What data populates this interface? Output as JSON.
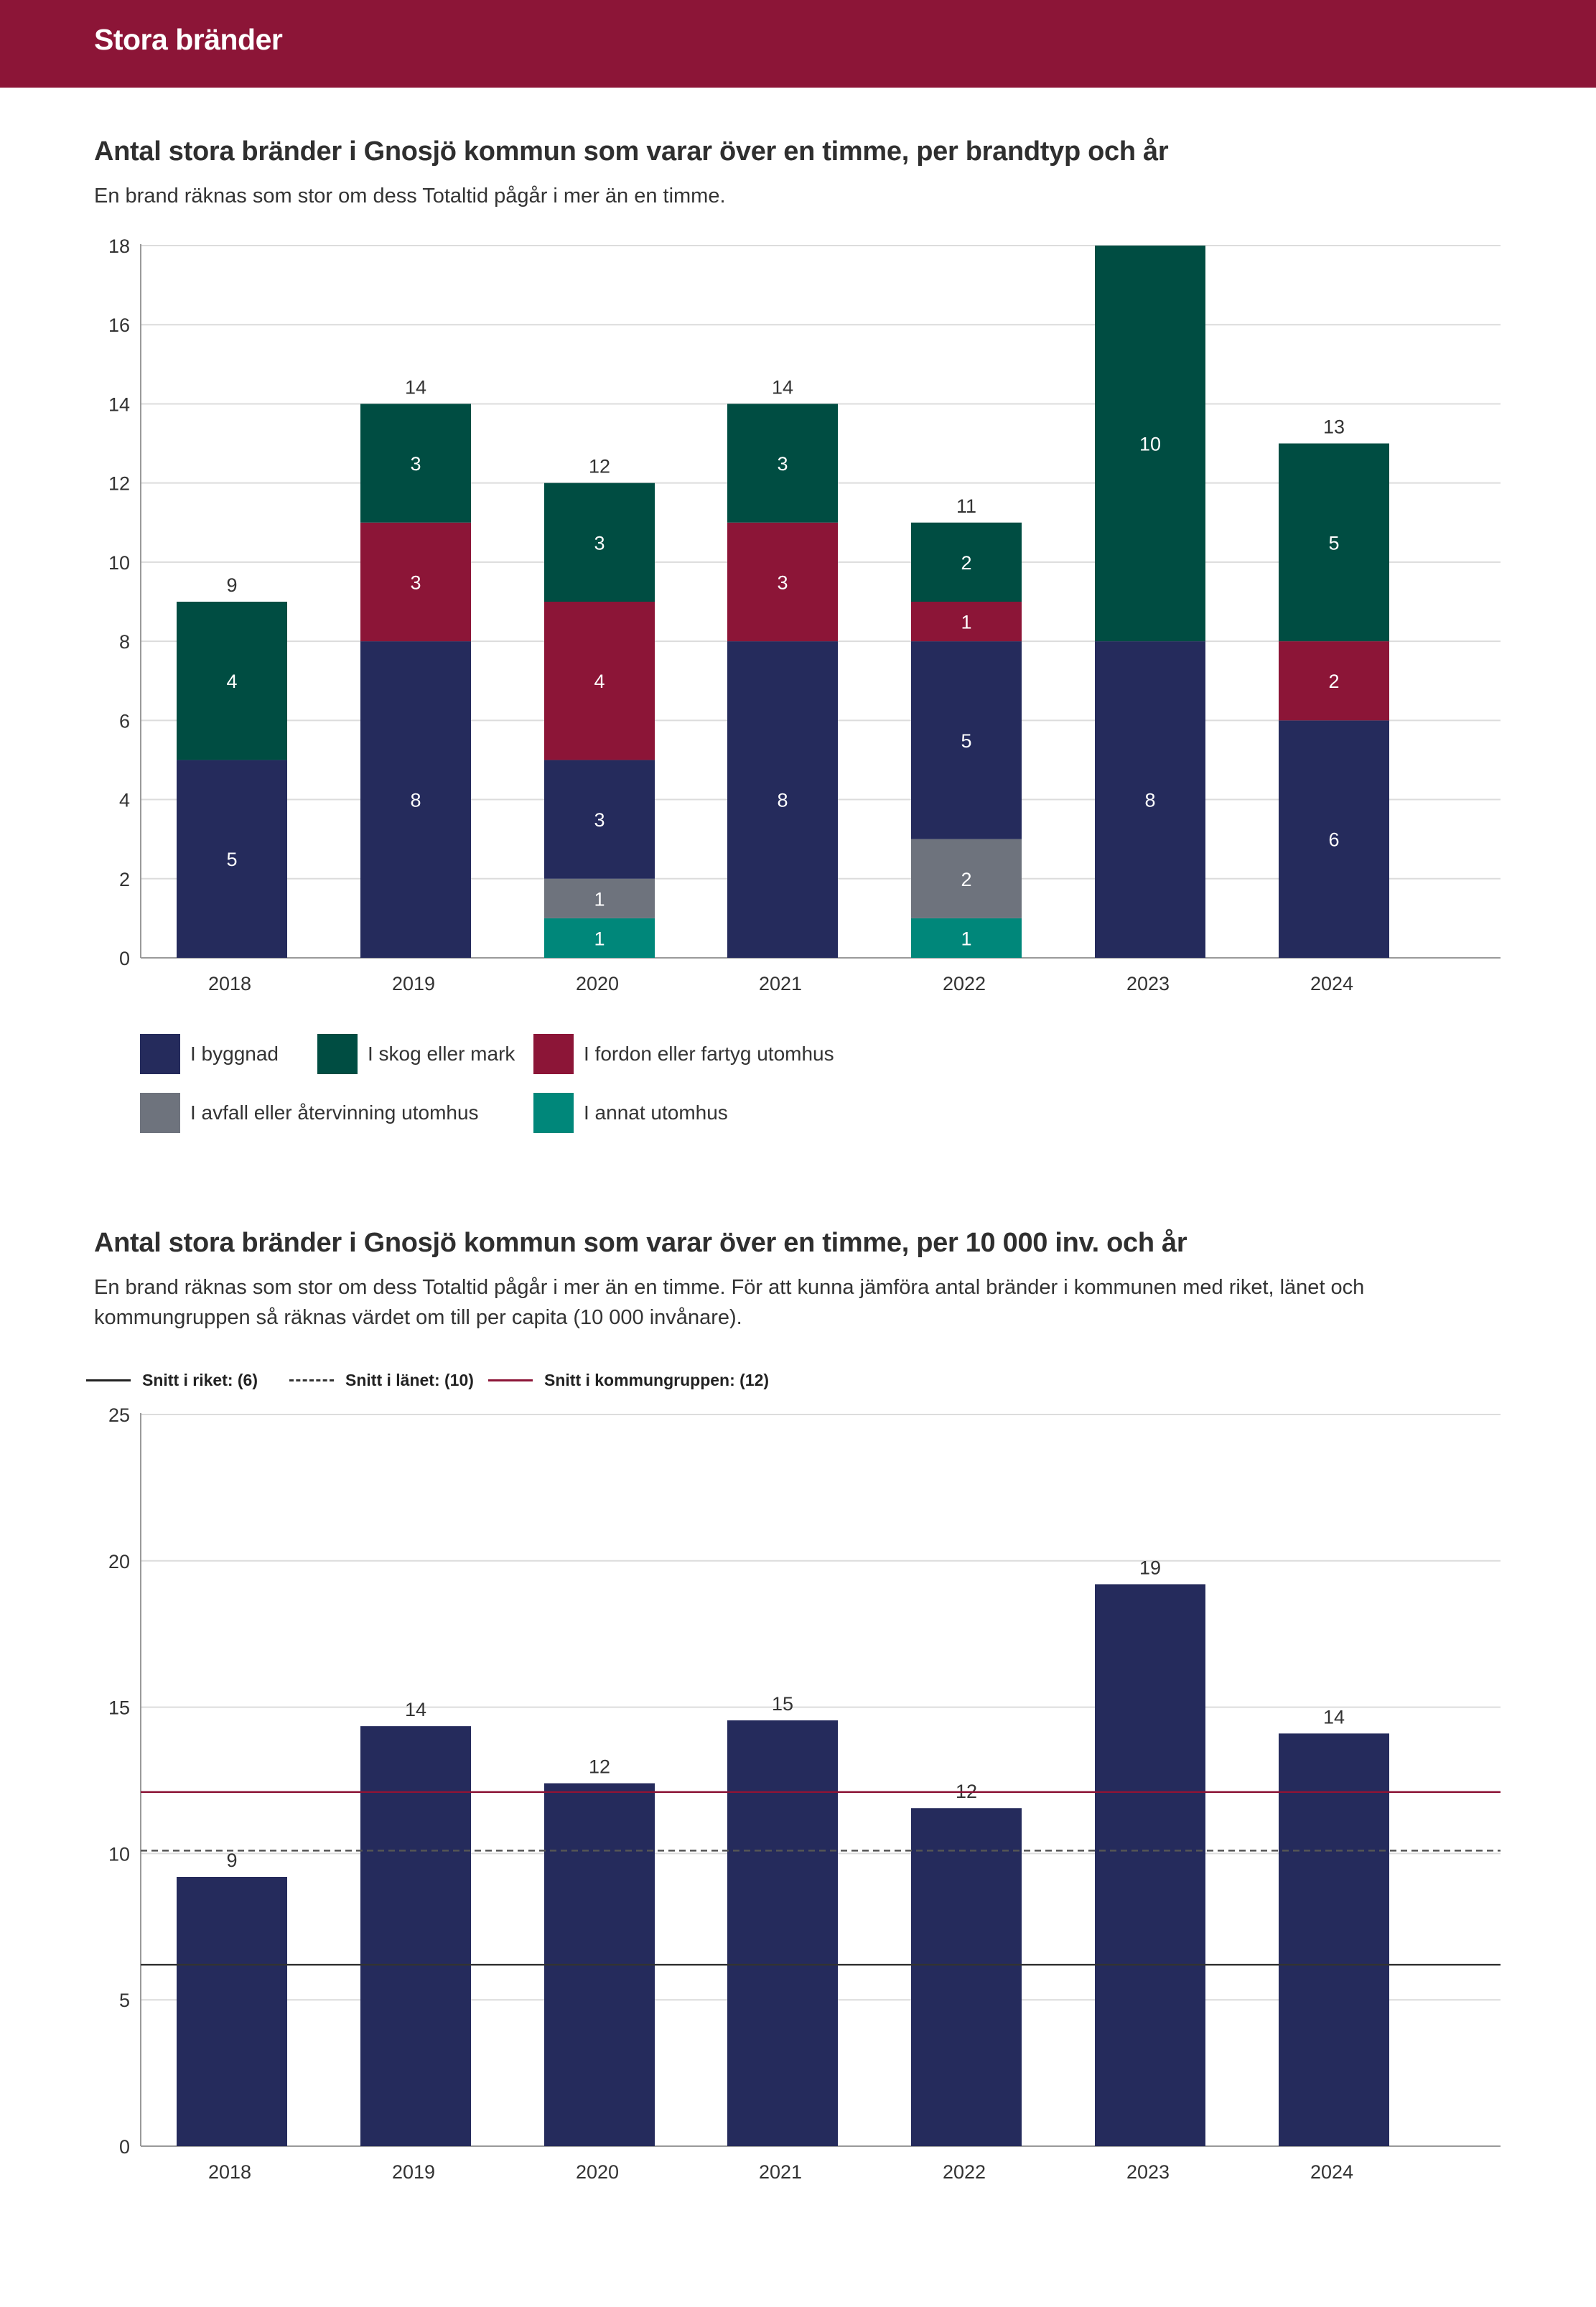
{
  "header": {
    "title": "Stora bränder"
  },
  "chart1": {
    "title": "Antal stora bränder i Gnosjö kommun som varar över en timme, per brandtyp och år",
    "subtitle": "En brand räknas som stor om dess Totaltid pågår i mer än en timme."
  },
  "chart2": {
    "title": "Antal stora bränder i Gnosjö kommun som varar över en timme, per 10 000 inv. och år",
    "subtitle": "En brand räknas som stor om dess Totaltid pågår i mer än en timme. För att kunna jämföra antal bränder i kommunen med riket, länet och kommungruppen så räknas värdet om till per capita (10 000 invånare).",
    "legend": {
      "riket": "Snitt i riket: (6)",
      "lanet": "Snitt i länet: (10)",
      "kommungruppen": "Snitt i kommungruppen: (12)"
    }
  },
  "chart_data": [
    {
      "type": "bar",
      "stacked": true,
      "title": "Antal stora bränder i Gnosjö kommun som varar över en timme, per brandtyp och år",
      "categories": [
        "2018",
        "2019",
        "2020",
        "2021",
        "2022",
        "2023",
        "2024"
      ],
      "series": [
        {
          "name": "I annat utomhus",
          "color": "#00877a",
          "values": [
            0,
            0,
            1,
            0,
            1,
            0,
            0
          ]
        },
        {
          "name": "I avfall eller återvinning utomhus",
          "color": "#6e737d",
          "values": [
            0,
            0,
            1,
            0,
            2,
            0,
            0
          ]
        },
        {
          "name": "I byggnad",
          "color": "#252b5c",
          "values": [
            5,
            8,
            3,
            8,
            5,
            8,
            6
          ]
        },
        {
          "name": "I fordon eller fartyg utomhus",
          "color": "#8c1537",
          "values": [
            0,
            3,
            4,
            3,
            1,
            0,
            2
          ]
        },
        {
          "name": "I skog eller mark",
          "color": "#004d42",
          "values": [
            4,
            3,
            3,
            3,
            2,
            10,
            5
          ]
        }
      ],
      "totals": [
        9,
        14,
        12,
        14,
        11,
        18,
        13
      ],
      "total_labels": [
        "9",
        "14",
        "12",
        "14",
        "11",
        "",
        "13"
      ],
      "yticks": [
        0,
        2,
        4,
        6,
        8,
        10,
        12,
        14,
        16,
        18
      ],
      "ylim": [
        0,
        18
      ],
      "legend_order": [
        "I byggnad",
        "I skog eller mark",
        "I fordon eller fartyg utomhus",
        "I avfall eller återvinning utomhus",
        "I annat utomhus"
      ]
    },
    {
      "type": "bar",
      "title": "Antal stora bränder i Gnosjö kommun som varar över en timme, per 10 000 inv. och år",
      "categories": [
        "2018",
        "2019",
        "2020",
        "2021",
        "2022",
        "2023",
        "2024"
      ],
      "values": [
        9.2,
        14.35,
        12.4,
        14.55,
        11.55,
        19.2,
        14.1
      ],
      "value_labels": [
        "9",
        "14",
        "12",
        "15",
        "12",
        "19",
        "14"
      ],
      "bar_color": "#252b5c",
      "yticks": [
        0,
        5,
        10,
        15,
        20,
        25
      ],
      "ylim": [
        0,
        25
      ],
      "reference_lines": [
        {
          "name": "Snitt i riket",
          "value": 6.2,
          "color": "#333333",
          "style": "solid"
        },
        {
          "name": "Snitt i länet",
          "value": 10.1,
          "color": "#555555",
          "style": "dashed"
        },
        {
          "name": "Snitt i kommungruppen",
          "value": 12.1,
          "color": "#8c1537",
          "style": "solid"
        }
      ]
    }
  ]
}
